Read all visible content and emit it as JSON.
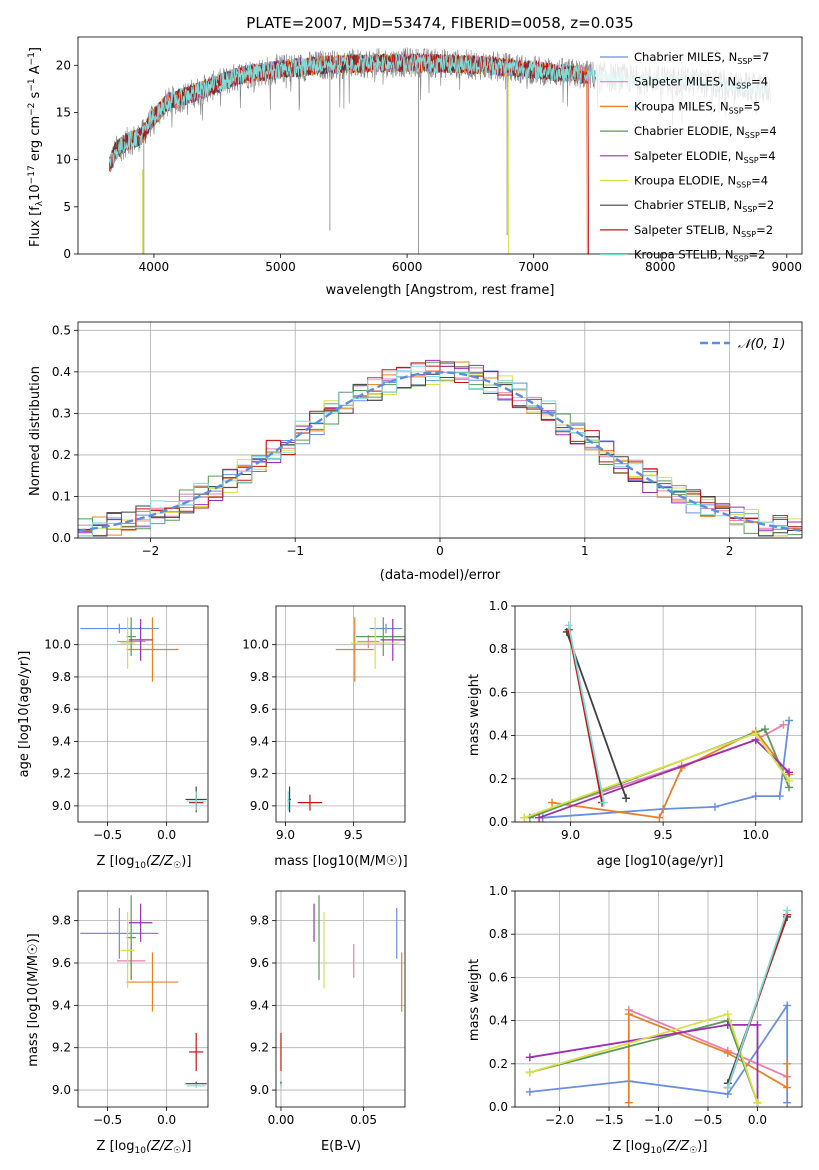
{
  "figure_title": "PLATE=2007, MJD=53474, FIBERID=0058, z=0.035",
  "colors": {
    "chabrier_miles": "#6a8fe0",
    "salpeter_miles": "#e87fb0",
    "kroupa_miles": "#e8802a",
    "chabrier_elodie": "#5a9a5a",
    "salpeter_elodie": "#9a30b0",
    "kroupa_elodie": "#d8e04a",
    "chabrier_stelib": "#404040",
    "salpeter_stelib": "#c01818",
    "kroupa_stelib": "#80dcd8",
    "normal": "#5a8ee0",
    "data": "#808080"
  },
  "chart_data": [
    {
      "id": "spectrum",
      "type": "line",
      "title": "PLATE=2007, MJD=53474, FIBERID=0058, z=0.035",
      "xlabel": "wavelength [Angstrom, rest frame]",
      "ylabel_parts": [
        "Flux [f",
        "λ",
        "10",
        "−17",
        " erg cm",
        "−2",
        " s",
        "−1",
        " A",
        "−1",
        "]"
      ],
      "xlim": [
        3400,
        9120
      ],
      "ylim": [
        0,
        23
      ],
      "xticks": [
        4000,
        5000,
        6000,
        7000,
        8000,
        9000
      ],
      "yticks": [
        0,
        5,
        10,
        15,
        20
      ],
      "grid": false,
      "legend_position": "right",
      "series": [
        {
          "name": "Chabrier MILES, N",
          "sub": "SSP",
          "suffix": "=7",
          "key": "chabrier_miles"
        },
        {
          "name": "Salpeter MILES, N",
          "sub": "SSP",
          "suffix": "=4",
          "key": "salpeter_miles"
        },
        {
          "name": "Kroupa MILES, N",
          "sub": "SSP",
          "suffix": "=5",
          "key": "kroupa_miles"
        },
        {
          "name": "Chabrier ELODIE, N",
          "sub": "SSP",
          "suffix": "=4",
          "key": "chabrier_elodie"
        },
        {
          "name": "Salpeter ELODIE, N",
          "sub": "SSP",
          "suffix": "=4",
          "key": "salpeter_elodie"
        },
        {
          "name": "Kroupa ELODIE, N",
          "sub": "SSP",
          "suffix": "=4",
          "key": "kroupa_elodie"
        },
        {
          "name": "Chabrier STELIB, N",
          "sub": "SSP",
          "suffix": "=2",
          "key": "chabrier_stelib"
        },
        {
          "name": "Salpeter STELIB, N",
          "sub": "SSP",
          "suffix": "=2",
          "key": "salpeter_stelib"
        },
        {
          "name": "Kroupa STELIB, N",
          "sub": "SSP",
          "suffix": "=2",
          "key": "kroupa_stelib"
        }
      ],
      "continuum": {
        "x": [
          3650,
          3700,
          3800,
          3900,
          4000,
          4100,
          4300,
          4500,
          4700,
          5000,
          5300,
          5600,
          6000,
          6300,
          6600,
          7000,
          7400,
          7800,
          8200,
          8600,
          8800
        ],
        "y": [
          9.5,
          11.0,
          12.0,
          12.5,
          14.5,
          16.0,
          17.0,
          18.0,
          19.0,
          19.6,
          20.0,
          20.2,
          20.3,
          20.2,
          20.0,
          19.5,
          19.0,
          18.5,
          18.3,
          17.8,
          17.5
        ]
      },
      "data_range": [
        3650,
        8870
      ],
      "model_ends": {
        "kroupa_miles": 7420,
        "salpeter_stelib": 7430,
        "kroupa_stelib": 7380,
        "salpeter_miles": 7450,
        "chabrier_miles": 7450,
        "chabrier_elodie": 6800,
        "salpeter_elodie": 6800,
        "kroupa_elodie": 6800,
        "chabrier_stelib": 7400
      },
      "spikes": [
        {
          "x": 3920,
          "y": 0
        },
        {
          "x": 5390,
          "y": 2.5
        },
        {
          "x": 6090,
          "y": 0
        },
        {
          "x": 6790,
          "y": 2.0
        }
      ]
    },
    {
      "id": "residuals",
      "type": "area",
      "xlabel": "(data-model)/error",
      "ylabel": "Normed distribution",
      "xlim": [
        -2.5,
        2.5
      ],
      "ylim": [
        0,
        0.52
      ],
      "xticks": [
        -2,
        -1,
        0,
        1,
        2
      ],
      "yticks": [
        0.0,
        0.1,
        0.2,
        0.3,
        0.4,
        0.5
      ],
      "grid": true,
      "legend_position": "top-right",
      "legend_label": "𝒩(0, 1)",
      "bin_width": 0.1
    },
    {
      "id": "age_vs_Z",
      "type": "scatter",
      "xlabel_main": "Z [log",
      "xlabel_sub": "10",
      "xlabel_rest": "(Z/Z",
      "xlabel_sun": "☉",
      "xlabel_end": ")]",
      "ylabel": "age  [log10(age/yr)]",
      "xlim": [
        -0.75,
        0.35
      ],
      "ylim": [
        8.9,
        10.24
      ],
      "xticks": [
        -0.5,
        0.0
      ],
      "yticks": [
        9.0,
        9.2,
        9.4,
        9.6,
        9.8,
        10.0
      ],
      "grid": true
    },
    {
      "id": "age_vs_mass",
      "type": "scatter",
      "xlabel": "mass [log10(M/M☉)]",
      "xlim": [
        8.93,
        9.88
      ],
      "ylim": [
        8.9,
        10.24
      ],
      "xticks": [
        9.0,
        9.5
      ],
      "yticks": [
        9.0,
        9.2,
        9.4,
        9.6,
        9.8,
        10.0
      ],
      "grid": true
    },
    {
      "id": "weight_vs_age",
      "type": "line",
      "xlabel": "age  [log10(age/yr)]",
      "ylabel": "mass weight",
      "xlim": [
        8.7,
        10.25
      ],
      "ylim": [
        0,
        1.0
      ],
      "xticks": [
        9.0,
        9.5,
        10.0
      ],
      "yticks": [
        0.0,
        0.2,
        0.4,
        0.6,
        0.8,
        1.0
      ],
      "grid": true,
      "series": [
        {
          "key": "chabrier_miles",
          "x": [
            8.85,
            9.5,
            9.78,
            10.0,
            10.13,
            10.18
          ],
          "y": [
            0.02,
            0.06,
            0.07,
            0.12,
            0.12,
            0.47
          ]
        },
        {
          "key": "salpeter_miles",
          "x": [
            8.75,
            9.6,
            10.0,
            10.15
          ],
          "y": [
            0.02,
            0.26,
            0.38,
            0.45
          ]
        },
        {
          "key": "kroupa_miles",
          "x": [
            8.9,
            9.48,
            9.6,
            10.0,
            10.18
          ],
          "y": [
            0.09,
            0.02,
            0.25,
            0.42,
            0.22
          ]
        },
        {
          "key": "chabrier_elodie",
          "x": [
            8.78,
            10.05,
            10.18
          ],
          "y": [
            0.02,
            0.43,
            0.16
          ]
        },
        {
          "key": "salpeter_elodie",
          "x": [
            8.83,
            10.0,
            10.18
          ],
          "y": [
            0.02,
            0.38,
            0.23
          ]
        },
        {
          "key": "kroupa_elodie",
          "x": [
            8.75,
            10.0,
            10.18
          ],
          "y": [
            0.02,
            0.41,
            0.19
          ]
        },
        {
          "key": "chabrier_stelib",
          "x": [
            8.98,
            9.3
          ],
          "y": [
            0.88,
            0.11
          ]
        },
        {
          "key": "salpeter_stelib",
          "x": [
            8.99,
            9.17
          ],
          "y": [
            0.89,
            0.09
          ]
        },
        {
          "key": "kroupa_stelib",
          "x": [
            8.99,
            9.18
          ],
          "y": [
            0.91,
            0.09
          ]
        }
      ]
    },
    {
      "id": "mass_vs_Z",
      "type": "scatter",
      "ylabel": "mass [log10(M/M☉)]",
      "xlim": [
        -0.75,
        0.35
      ],
      "ylim": [
        8.92,
        9.94
      ],
      "xticks": [
        -0.5,
        0.0
      ],
      "yticks": [
        9.0,
        9.2,
        9.4,
        9.6,
        9.8
      ],
      "grid": true
    },
    {
      "id": "mass_vs_ebv",
      "type": "scatter",
      "xlabel": "E(B-V)",
      "xlim": [
        -0.003,
        0.075
      ],
      "ylim": [
        8.92,
        9.94
      ],
      "xticks": [
        0.0,
        0.05
      ],
      "yticks": [
        9.0,
        9.2,
        9.4,
        9.6,
        9.8
      ],
      "grid": true
    },
    {
      "id": "weight_vs_Z",
      "type": "line",
      "ylabel": "mass weight",
      "xlim": [
        -2.45,
        0.45
      ],
      "ylim": [
        0,
        1.0
      ],
      "xticks": [
        -2.0,
        -1.5,
        -1.0,
        -0.5,
        0.0
      ],
      "yticks": [
        0.0,
        0.2,
        0.4,
        0.6,
        0.8,
        1.0
      ],
      "grid": true,
      "series": [
        {
          "key": "chabrier_miles",
          "x": [
            -2.3,
            -1.3,
            -0.3,
            0.3,
            0.3
          ],
          "y": [
            0.07,
            0.12,
            0.06,
            0.47,
            0.02
          ]
        },
        {
          "key": "salpeter_miles",
          "x": [
            -1.3,
            -0.3,
            0.3
          ],
          "y": [
            0.45,
            0.26,
            0.14
          ]
        },
        {
          "key": "kroupa_miles",
          "x": [
            -1.3,
            -1.3,
            -0.3,
            0.3,
            0.3
          ],
          "y": [
            0.02,
            0.43,
            0.25,
            0.09,
            0.2
          ]
        },
        {
          "key": "chabrier_elodie",
          "x": [
            -2.3,
            -0.3,
            0.0
          ],
          "y": [
            0.16,
            0.4,
            0.02
          ]
        },
        {
          "key": "salpeter_elodie",
          "x": [
            -2.3,
            -0.3,
            0.0,
            0.0
          ],
          "y": [
            0.23,
            0.38,
            0.38,
            0.02
          ]
        },
        {
          "key": "kroupa_elodie",
          "x": [
            -2.3,
            -0.3,
            0.0
          ],
          "y": [
            0.16,
            0.43,
            0.02
          ]
        },
        {
          "key": "chabrier_stelib",
          "x": [
            -0.3,
            0.3
          ],
          "y": [
            0.11,
            0.88
          ]
        },
        {
          "key": "salpeter_stelib",
          "x": [
            -0.3,
            0.3
          ],
          "y": [
            0.09,
            0.89
          ]
        },
        {
          "key": "kroupa_stelib",
          "x": [
            -0.3,
            0.3
          ],
          "y": [
            0.09,
            0.91
          ]
        }
      ]
    }
  ],
  "ssp_points": [
    {
      "key": "chabrier_miles",
      "Z": -0.4,
      "Zerr": 0.33,
      "age": 10.1,
      "ageErr": 0.03,
      "mass": 9.74,
      "massErr": 0.12,
      "ebv": 0.07,
      "ebvErr": 0.0
    },
    {
      "key": "salpeter_miles",
      "Z": -0.3,
      "Zerr": 0.12,
      "age": 10.02,
      "ageErr": 0.04,
      "mass": 9.61,
      "massErr": 0.08,
      "ebv": 0.044,
      "ebvErr": 0.0
    },
    {
      "key": "kroupa_miles",
      "Z": -0.12,
      "Zerr": 0.22,
      "age": 9.97,
      "ageErr": 0.2,
      "mass": 9.51,
      "massErr": 0.14,
      "ebv": 0.073,
      "ebvErr": 0.0
    },
    {
      "key": "chabrier_elodie",
      "Z": -0.3,
      "Zerr": 0.04,
      "age": 10.05,
      "ageErr": 0.12,
      "mass": 9.72,
      "massErr": 0.2,
      "ebv": 0.023,
      "ebvErr": 0.0
    },
    {
      "key": "salpeter_elodie",
      "Z": -0.22,
      "Zerr": 0.1,
      "age": 10.03,
      "ageErr": 0.13,
      "mass": 9.79,
      "massErr": 0.09,
      "ebv": 0.02,
      "ebvErr": 0.0
    },
    {
      "key": "kroupa_elodie",
      "Z": -0.33,
      "Zerr": 0.06,
      "age": 10.01,
      "ageErr": 0.16,
      "mass": 9.66,
      "massErr": 0.18,
      "ebv": 0.026,
      "ebvErr": 0.0
    },
    {
      "key": "chabrier_stelib",
      "Z": 0.25,
      "Zerr": 0.09,
      "age": 9.04,
      "ageErr": 0.08,
      "mass": 9.03,
      "massErr": 0.01,
      "ebv": 0.0,
      "ebvErr": 0.0
    },
    {
      "key": "salpeter_stelib",
      "Z": 0.25,
      "Zerr": 0.06,
      "age": 9.02,
      "ageErr": 0.05,
      "mass": 9.18,
      "massErr": 0.09,
      "ebv": 0.0,
      "ebvErr": 0.0
    },
    {
      "key": "kroupa_stelib",
      "Z": 0.25,
      "Zerr": 0.08,
      "age": 9.03,
      "ageErr": 0.06,
      "mass": 9.02,
      "massErr": 0.01,
      "ebv": 0.0,
      "ebvErr": 0.0
    }
  ],
  "tick_labels": {
    "spec_x": [
      "4000",
      "5000",
      "6000",
      "7000",
      "8000",
      "9000"
    ],
    "spec_y": [
      "0",
      "5",
      "10",
      "15",
      "20"
    ],
    "res_x": [
      "−2",
      "−1",
      "0",
      "1",
      "2"
    ],
    "res_y": [
      "0.0",
      "0.1",
      "0.2",
      "0.3",
      "0.4",
      "0.5"
    ],
    "z_x": [
      "−0.5",
      "0.0"
    ],
    "age_y": [
      "9.0",
      "9.2",
      "9.4",
      "9.6",
      "9.8",
      "10.0"
    ],
    "mass_x": [
      "9.0",
      "9.5"
    ],
    "w_y": [
      "0.0",
      "0.2",
      "0.4",
      "0.6",
      "0.8",
      "1.0"
    ],
    "age_x": [
      "9.0",
      "9.5",
      "10.0"
    ],
    "mass_y": [
      "9.0",
      "9.2",
      "9.4",
      "9.6",
      "9.8"
    ],
    "ebv_x": [
      "0.00",
      "0.05"
    ],
    "zz_x": [
      "−2.0",
      "−1.5",
      "−1.0",
      "−0.5",
      "0.0"
    ]
  }
}
